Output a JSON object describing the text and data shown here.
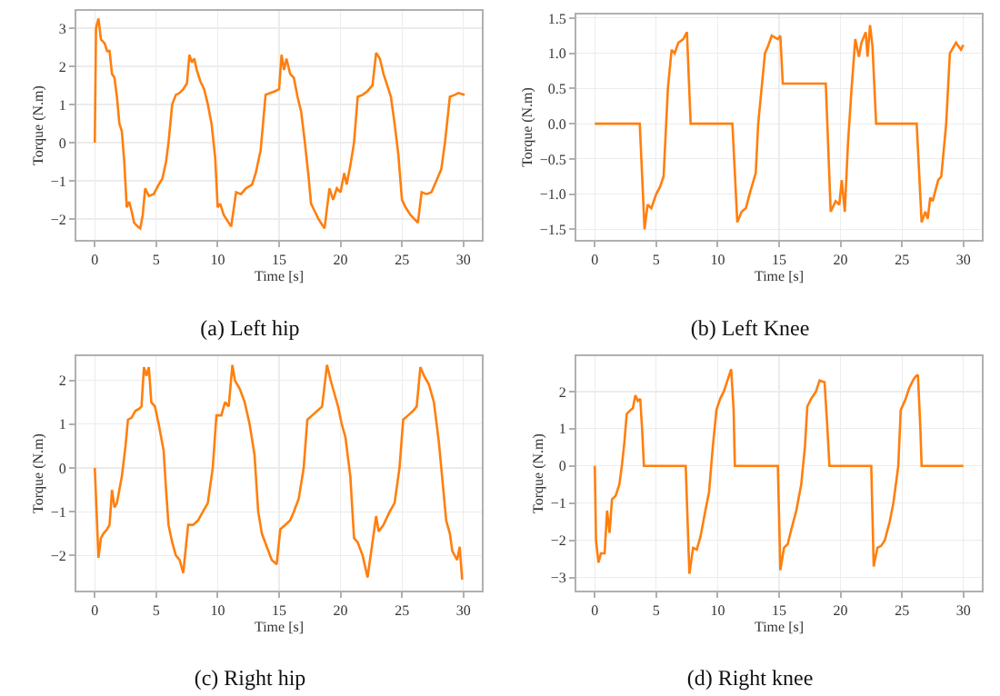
{
  "chart_data": [
    {
      "type": "line",
      "title": "(a) Left hip",
      "xlabel": "Time [s]",
      "ylabel": "Torque (N.m)",
      "grid": true,
      "xlim": [
        -1.5,
        31.5
      ],
      "ylim": [
        -2.55,
        3.45
      ],
      "xticks": [
        0,
        5,
        10,
        15,
        20,
        25,
        30
      ],
      "yticks": [
        -2,
        -1,
        0,
        1,
        2,
        3
      ],
      "series": [
        {
          "color": "#ff7f0e",
          "x": [
            0,
            0.1,
            0.3,
            0.5,
            0.8,
            1.0,
            1.2,
            1.4,
            1.6,
            1.8,
            2.0,
            2.2,
            2.4,
            2.6,
            2.8,
            3.0,
            3.2,
            3.5,
            3.7,
            3.9,
            4.1,
            4.4,
            4.8,
            5.2,
            5.5,
            5.8,
            6.0,
            6.3,
            6.6,
            6.9,
            7.2,
            7.5,
            7.7,
            7.9,
            8.1,
            8.3,
            8.6,
            8.9,
            9.2,
            9.5,
            9.8,
            10.0,
            10.2,
            10.5,
            10.9,
            11.1,
            11.5,
            11.9,
            12.3,
            12.8,
            13.1,
            13.5,
            13.9,
            14.3,
            14.7,
            15.0,
            15.2,
            15.4,
            15.6,
            15.9,
            16.2,
            16.5,
            16.8,
            17.1,
            17.4,
            17.6,
            17.9,
            18.2,
            18.5,
            18.7,
            19.1,
            19.4,
            19.7,
            20.0,
            20.3,
            20.5,
            20.8,
            21.1,
            21.4,
            21.8,
            22.2,
            22.6,
            22.9,
            23.2,
            23.5,
            23.8,
            24.1,
            24.4,
            24.7,
            25.0,
            25.3,
            25.7,
            26.0,
            26.3,
            26.6,
            27.0,
            27.4,
            27.8,
            28.2,
            28.5,
            28.9,
            29.3,
            29.6,
            30.1
          ],
          "values": [
            0,
            3.0,
            3.25,
            2.7,
            2.6,
            2.4,
            2.4,
            1.8,
            1.7,
            1.2,
            0.5,
            0.3,
            -0.5,
            -1.7,
            -1.55,
            -1.8,
            -2.1,
            -2.2,
            -2.25,
            -1.9,
            -1.2,
            -1.4,
            -1.35,
            -1.1,
            -0.95,
            -0.5,
            0,
            1.0,
            1.25,
            1.3,
            1.4,
            1.55,
            2.3,
            2.1,
            2.2,
            1.9,
            1.6,
            1.4,
            1.0,
            0.5,
            -0.4,
            -1.7,
            -1.6,
            -1.9,
            -2.1,
            -2.2,
            -1.3,
            -1.35,
            -1.2,
            -1.1,
            -0.8,
            -0.2,
            1.25,
            1.3,
            1.35,
            1.4,
            2.3,
            1.9,
            2.2,
            1.8,
            1.7,
            1.2,
            0.8,
            0,
            -0.9,
            -1.6,
            -1.8,
            -2.0,
            -2.15,
            -2.25,
            -1.2,
            -1.5,
            -1.2,
            -1.3,
            -0.8,
            -1.1,
            -0.6,
            0,
            1.2,
            1.25,
            1.35,
            1.5,
            2.35,
            2.2,
            1.8,
            1.5,
            1.2,
            0.5,
            -0.3,
            -1.5,
            -1.7,
            -1.9,
            -2.0,
            -2.1,
            -1.3,
            -1.35,
            -1.3,
            -1.0,
            -0.7,
            0,
            1.2,
            1.25,
            1.3,
            1.25
          ]
        }
      ]
    },
    {
      "type": "line",
      "title": "(b) Left Knee",
      "xlabel": "Time [s]",
      "ylabel": "Torque (N.m)",
      "grid": true,
      "xlim": [
        -1.5,
        31.5
      ],
      "ylim": [
        -1.65,
        1.55
      ],
      "xticks": [
        0,
        5,
        10,
        15,
        20,
        25,
        30
      ],
      "yticks": [
        {
          "value": -1.5,
          "label": "−1.5"
        },
        {
          "value": -1,
          "label": "−1.0"
        },
        {
          "value": -0.5,
          "label": "−0.5"
        },
        {
          "value": 0,
          "label": "0.0"
        },
        0.5,
        {
          "value": 1,
          "label": "1.0"
        },
        1.5
      ],
      "series": [
        {
          "color": "#ff7f0e",
          "x": [
            0,
            3.66,
            4.05,
            4.3,
            4.6,
            5.0,
            5.3,
            5.6,
            5.95,
            6.25,
            6.5,
            6.8,
            7.2,
            7.5,
            7.8,
            11.2,
            11.6,
            11.95,
            12.3,
            12.6,
            13.1,
            13.3,
            13.85,
            14.1,
            14.4,
            14.9,
            15.1,
            15.3,
            18.8,
            19.2,
            19.6,
            19.9,
            20.1,
            20.35,
            20.6,
            20.9,
            21.2,
            21.5,
            21.7,
            22.05,
            22.2,
            22.4,
            22.6,
            22.9,
            26.2,
            26.6,
            26.9,
            27.1,
            27.3,
            27.5,
            27.95,
            28.2,
            28.6,
            28.9,
            29.4,
            29.8,
            30
          ],
          "values": [
            0,
            0,
            -1.5,
            -1.15,
            -1.2,
            -1.0,
            -0.9,
            -0.75,
            0.5,
            1.05,
            1.0,
            1.15,
            1.2,
            1.3,
            0,
            0,
            -1.4,
            -1.25,
            -1.2,
            -1.0,
            -0.7,
            0,
            1.0,
            1.1,
            1.25,
            1.2,
            1.25,
            0.57,
            0.57,
            -1.25,
            -1.1,
            -1.15,
            -0.8,
            -1.25,
            -0.3,
            0.5,
            1.2,
            0.95,
            1.15,
            1.3,
            0.95,
            1.4,
            1.1,
            0,
            0,
            -1.4,
            -1.25,
            -1.35,
            -1.05,
            -1.1,
            -0.8,
            -0.75,
            0,
            1.0,
            1.15,
            1.05,
            1.12
          ]
        }
      ]
    },
    {
      "type": "line",
      "title": "(c) Right hip",
      "xlabel": "Time [s]",
      "ylabel": "Torque (N.m)",
      "grid": true,
      "xlim": [
        -1.5,
        31.5
      ],
      "ylim": [
        -2.8,
        2.55
      ],
      "xticks": [
        0,
        5,
        10,
        15,
        20,
        25,
        30
      ],
      "yticks": [
        -2,
        -1,
        0,
        1,
        2
      ],
      "series": [
        {
          "color": "#ff7f0e",
          "x": [
            0,
            0.3,
            0.5,
            0.7,
            1.0,
            1.2,
            1.4,
            1.6,
            1.8,
            2.2,
            2.5,
            2.7,
            3.0,
            3.3,
            3.6,
            3.8,
            4.0,
            4.2,
            4.4,
            4.6,
            4.9,
            5.2,
            5.6,
            5.8,
            6.0,
            6.3,
            6.6,
            6.9,
            7.2,
            7.6,
            8.0,
            8.4,
            8.8,
            9.2,
            9.6,
            9.9,
            10.3,
            10.6,
            10.9,
            11.2,
            11.4,
            11.8,
            12.2,
            12.6,
            13.0,
            13.3,
            13.6,
            14.0,
            14.4,
            14.8,
            15.1,
            15.5,
            15.9,
            16.2,
            16.6,
            17.0,
            17.3,
            17.7,
            18.1,
            18.5,
            18.9,
            19.2,
            19.5,
            19.8,
            20.1,
            20.4,
            20.8,
            21.1,
            21.4,
            21.8,
            22.2,
            22.6,
            22.9,
            23.1,
            23.5,
            24.0,
            24.4,
            24.8,
            25.1,
            25.5,
            25.9,
            26.2,
            26.5,
            26.8,
            27.2,
            27.6,
            28.0,
            28.3,
            28.6,
            28.9,
            29.1,
            29.5,
            29.7,
            29.9
          ],
          "values": [
            0,
            -2.05,
            -1.6,
            -1.5,
            -1.4,
            -1.3,
            -0.5,
            -0.9,
            -0.8,
            -0.2,
            0.5,
            1.1,
            1.15,
            1.3,
            1.35,
            1.4,
            2.3,
            2.1,
            2.3,
            1.5,
            1.4,
            1.0,
            0.4,
            -0.5,
            -1.3,
            -1.7,
            -2.0,
            -2.1,
            -2.4,
            -1.3,
            -1.3,
            -1.2,
            -1.0,
            -0.8,
            0,
            1.2,
            1.2,
            1.5,
            1.4,
            2.35,
            2.0,
            1.8,
            1.5,
            1.0,
            0.3,
            -1.0,
            -1.5,
            -1.8,
            -2.1,
            -2.2,
            -1.4,
            -1.3,
            -1.2,
            -1.0,
            -0.7,
            0,
            1.1,
            1.2,
            1.3,
            1.4,
            2.35,
            2.0,
            1.7,
            1.4,
            1.0,
            0.7,
            -0.2,
            -1.6,
            -1.7,
            -2.0,
            -2.5,
            -1.7,
            -1.1,
            -1.45,
            -1.3,
            -1.0,
            -0.8,
            0,
            1.1,
            1.2,
            1.3,
            1.4,
            2.3,
            2.1,
            1.9,
            1.5,
            0.6,
            -0.3,
            -1.2,
            -1.5,
            -1.9,
            -2.1,
            -1.8,
            -2.55
          ]
        }
      ]
    },
    {
      "type": "line",
      "title": "(d) Right knee",
      "xlabel": "Time [s]",
      "ylabel": "Torque (N.m)",
      "grid": true,
      "xlim": [
        -1.5,
        31.5
      ],
      "ylim": [
        -3.35,
        2.95
      ],
      "xticks": [
        0,
        5,
        10,
        15,
        20,
        25,
        30
      ],
      "yticks": [
        -3,
        -2,
        -1,
        0,
        1,
        2
      ],
      "series": [
        {
          "color": "#ff7f0e",
          "x": [
            0,
            0.1,
            0.3,
            0.5,
            0.8,
            1.0,
            1.2,
            1.4,
            1.7,
            2.0,
            2.2,
            2.4,
            2.6,
            2.9,
            3.1,
            3.3,
            3.5,
            3.7,
            3.85,
            4.0,
            7.4,
            7.7,
            8.0,
            8.3,
            8.6,
            9.0,
            9.3,
            9.6,
            9.9,
            10.2,
            10.5,
            10.8,
            11.1,
            11.3,
            11.4,
            14.9,
            15.1,
            15.4,
            15.7,
            16.0,
            16.4,
            16.8,
            17.1,
            17.3,
            17.6,
            18.0,
            18.3,
            18.7,
            18.9,
            19.1,
            22.5,
            22.7,
            23.0,
            23.3,
            23.6,
            24.0,
            24.3,
            24.7,
            24.9,
            25.3,
            25.6,
            25.9,
            26.1,
            26.3,
            26.5,
            26.6,
            30
          ],
          "values": [
            0,
            -2.0,
            -2.6,
            -2.35,
            -2.35,
            -1.2,
            -1.8,
            -0.9,
            -0.8,
            -0.5,
            0,
            0.6,
            1.4,
            1.5,
            1.55,
            1.9,
            1.75,
            1.8,
            1.0,
            0,
            0,
            -2.9,
            -2.2,
            -2.25,
            -1.9,
            -1.2,
            -0.7,
            0.5,
            1.5,
            1.8,
            2.0,
            2.3,
            2.6,
            1.5,
            0,
            0,
            -2.8,
            -2.2,
            -2.1,
            -1.7,
            -1.2,
            -0.5,
            0.5,
            1.6,
            1.8,
            2.0,
            2.3,
            2.25,
            1.2,
            0,
            0,
            -2.7,
            -2.2,
            -2.15,
            -2.0,
            -1.5,
            -1.0,
            0,
            1.5,
            1.8,
            2.1,
            2.3,
            2.4,
            2.45,
            1.0,
            0,
            0
          ]
        }
      ]
    }
  ]
}
